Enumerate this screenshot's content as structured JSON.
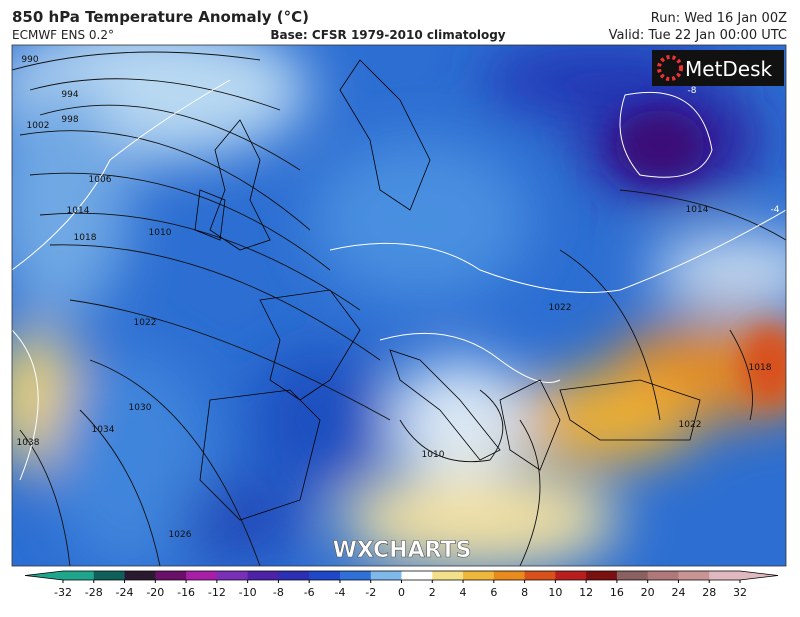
{
  "header": {
    "title": "850 hPa Temperature Anomaly (°C)",
    "model": "ECMWF ENS 0.2°",
    "base": "Base: CFSR 1979-2010 climatology",
    "run": "Run: Wed 16 Jan 00Z",
    "valid": "Valid: Tue 22 Jan 00:00 UTC"
  },
  "logo": "MetDesk",
  "watermark": "WXCHARTS",
  "isobar_labels": [
    990,
    994,
    998,
    1002,
    1006,
    1014,
    1018,
    1010,
    1022,
    1030,
    1034,
    1038,
    1026,
    1010,
    1014,
    1022,
    1018,
    1022,
    -8,
    -4
  ],
  "colorbar": {
    "ticks": [
      -32,
      -28,
      -24,
      -20,
      -16,
      -12,
      -10,
      -8,
      -6,
      -4,
      -2,
      0,
      2,
      4,
      6,
      8,
      10,
      12,
      16,
      20,
      24,
      28,
      32
    ],
    "colors": [
      "#1fa58c",
      "#0f5f5a",
      "#2a1a30",
      "#6a1068",
      "#a81ea8",
      "#7a2fb8",
      "#4b22a8",
      "#2a2fb4",
      "#1f48c8",
      "#2f6fd8",
      "#7fb8ea",
      "#ffffff",
      "#f5e08a",
      "#f0b83a",
      "#e98a1c",
      "#d8501a",
      "#b81e1e",
      "#7a1010",
      "#8a6060",
      "#b07878",
      "#c99494",
      "#e0b8c0"
    ]
  }
}
